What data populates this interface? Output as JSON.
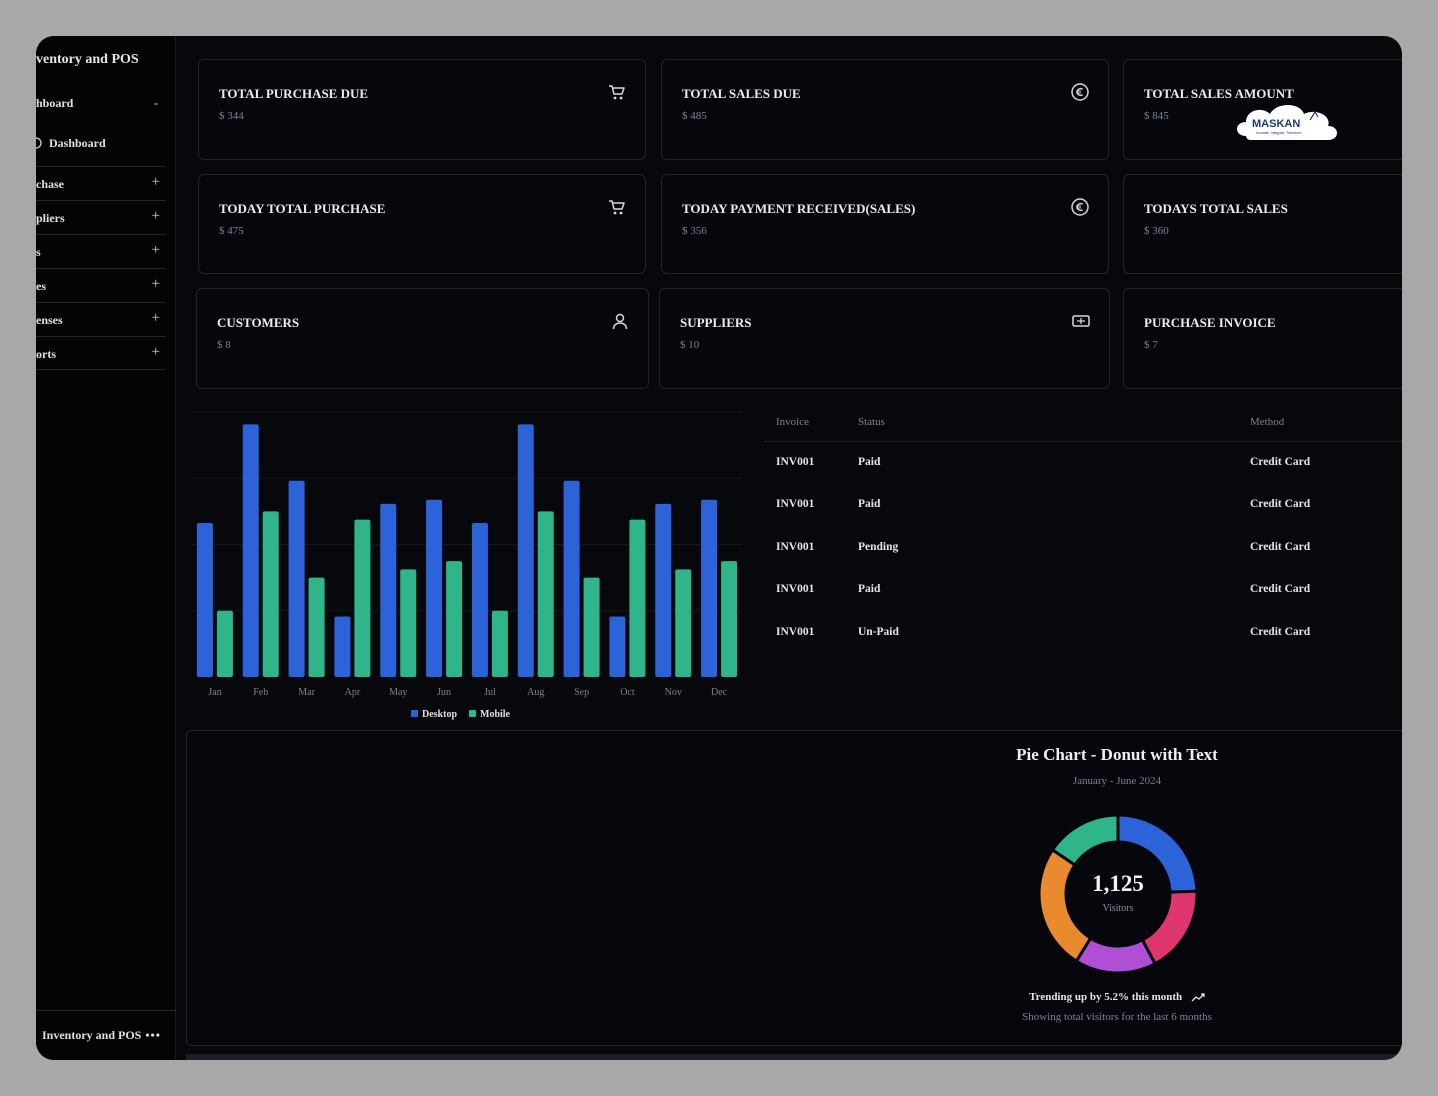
{
  "sidebar": {
    "app_title": "ventory and POS",
    "group_label": "hboard",
    "group_sign": "-",
    "sub_item": "Dashboard",
    "items": [
      {
        "label": "chase",
        "sign": "+"
      },
      {
        "label": "pliers",
        "sign": "+"
      },
      {
        "label": "s",
        "sign": "+"
      },
      {
        "label": "es",
        "sign": "+"
      },
      {
        "label": "enses",
        "sign": "+"
      },
      {
        "label": "orts",
        "sign": "+"
      }
    ],
    "footer_label": "Inventory and POS",
    "footer_more": "•••"
  },
  "cards": [
    {
      "title": "TOTAL PURCHASE DUE",
      "value": "$ 344",
      "icon": "cart-icon"
    },
    {
      "title": "TOTAL SALES DUE",
      "value": "$ 485",
      "icon": "currency-icon"
    },
    {
      "title": "TOTAL SALES AMOUNT",
      "value": "$ 845",
      "icon": "logo"
    },
    {
      "title": "TODAY TOTAL PURCHASE",
      "value": "$ 475",
      "icon": "cart-icon"
    },
    {
      "title": "TODAY PAYMENT RECEIVED(SALES)",
      "value": "$ 356",
      "icon": "currency-icon"
    },
    {
      "title": "TODAYS TOTAL SALES",
      "value": "$ 360",
      "icon": "none"
    },
    {
      "title": "CUSTOMERS",
      "value": "$ 8",
      "icon": "user-icon"
    },
    {
      "title": "SUPPLIERS",
      "value": "$ 10",
      "icon": "ticket-icon"
    },
    {
      "title": "PURCHASE INVOICE",
      "value": "$ 7",
      "icon": "none"
    }
  ],
  "logo": {
    "text": "MASKAN",
    "tagline": "Innovate, Integrate, Transform"
  },
  "chart_data": {
    "type": "bar",
    "categories": [
      "Jan",
      "Feb",
      "Mar",
      "Apr",
      "May",
      "Jun",
      "Jul",
      "Aug",
      "Sep",
      "Oct",
      "Nov",
      "Dec"
    ],
    "series": [
      {
        "name": "Desktop",
        "color": "#2c63d9",
        "values": [
          186,
          305,
          237,
          73,
          209,
          214,
          186,
          305,
          237,
          73,
          209,
          214
        ]
      },
      {
        "name": "Mobile",
        "color": "#2fb589",
        "values": [
          80,
          200,
          120,
          190,
          130,
          140,
          80,
          200,
          120,
          190,
          130,
          140
        ]
      }
    ],
    "ylim": [
      0,
      320
    ],
    "grid": true,
    "legend": "bottom"
  },
  "table": {
    "headers": {
      "invoice": "Invoice",
      "status": "Status",
      "method": "Method"
    },
    "rows": [
      {
        "invoice": "INV001",
        "status": "Paid",
        "method": "Credit Card"
      },
      {
        "invoice": "INV001",
        "status": "Paid",
        "method": "Credit Card"
      },
      {
        "invoice": "INV001",
        "status": "Pending",
        "method": "Credit Card"
      },
      {
        "invoice": "INV001",
        "status": "Paid",
        "method": "Credit Card"
      },
      {
        "invoice": "INV001",
        "status": "Un-Paid",
        "method": "Credit Card"
      }
    ]
  },
  "pie": {
    "title": "Pie Chart - Donut with Text",
    "subtitle": "January - June 2024",
    "center_value": "1,125",
    "center_label": "Visitors",
    "trend": "Trending up by 5.2% this month",
    "footer": "Showing total visitors for the last 6 months",
    "slices": [
      {
        "name": "blue",
        "value": 275,
        "color": "#2c63d9"
      },
      {
        "name": "pink",
        "value": 200,
        "color": "#e0366f"
      },
      {
        "name": "purple",
        "value": 187,
        "color": "#b04fd6"
      },
      {
        "name": "orange",
        "value": 288,
        "color": "#e98a2f"
      },
      {
        "name": "green",
        "value": 175,
        "color": "#2fb589"
      }
    ]
  }
}
